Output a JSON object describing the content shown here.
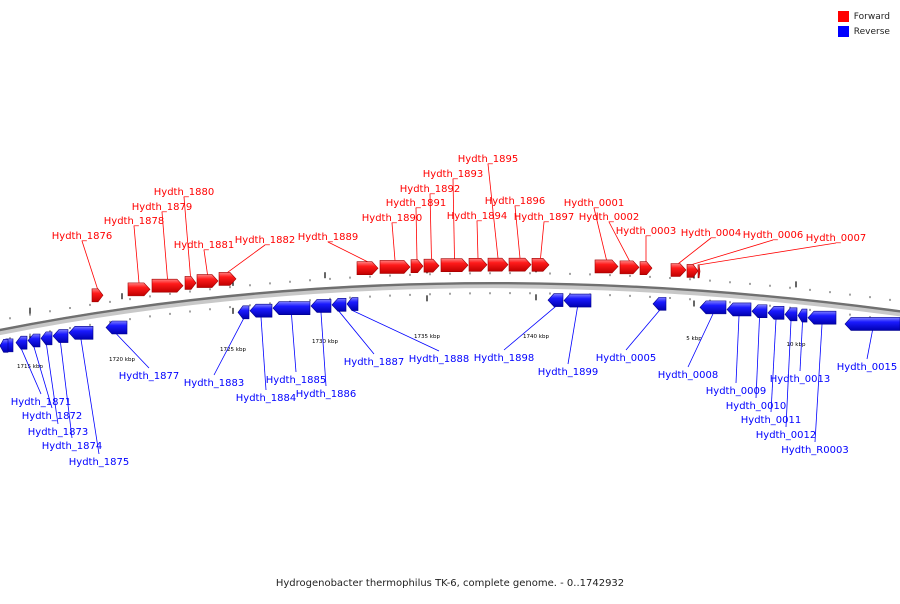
{
  "legend": {
    "forward_label": "Forward",
    "reverse_label": "Reverse",
    "forward_color": "#ff0000",
    "reverse_color": "#0000ff"
  },
  "caption": "Hydrogenobacter thermophilus TK-6, complete genome. - 0..1742932",
  "ticks": [
    {
      "label": "1715 kbp"
    },
    {
      "label": "1720 kbp"
    },
    {
      "label": "1725 kbp"
    },
    {
      "label": "1730 kbp"
    },
    {
      "label": "1735 kbp"
    },
    {
      "label": "1740 kbp"
    },
    {
      "label": "5 kbp"
    },
    {
      "label": "10 kbp"
    }
  ],
  "forward_genes": [
    "Hydth_1876",
    "Hydth_1878",
    "Hydth_1879",
    "Hydth_1880",
    "Hydth_1881",
    "Hydth_1882",
    "Hydth_1889",
    "Hydth_1890",
    "Hydth_1891",
    "Hydth_1892",
    "Hydth_1893",
    "Hydth_1894",
    "Hydth_1895",
    "Hydth_1896",
    "Hydth_1897",
    "Hydth_0001",
    "Hydth_0002",
    "Hydth_0003",
    "Hydth_0004",
    "Hydth_0006",
    "Hydth_0007"
  ],
  "reverse_genes": [
    "Hydth_1871",
    "Hydth_1872",
    "Hydth_1873",
    "Hydth_1874",
    "Hydth_1875",
    "Hydth_1877",
    "Hydth_1883",
    "Hydth_1884",
    "Hydth_1885",
    "Hydth_1886",
    "Hydth_1887",
    "Hydth_1888",
    "Hydth_1898",
    "Hydth_1899",
    "Hydth_0005",
    "Hydth_0008",
    "Hydth_0009",
    "Hydth_0010",
    "Hydth_0011",
    "Hydth_0012",
    "Hydth_0013",
    "Hydth_R0003",
    "Hydth_0015"
  ]
}
